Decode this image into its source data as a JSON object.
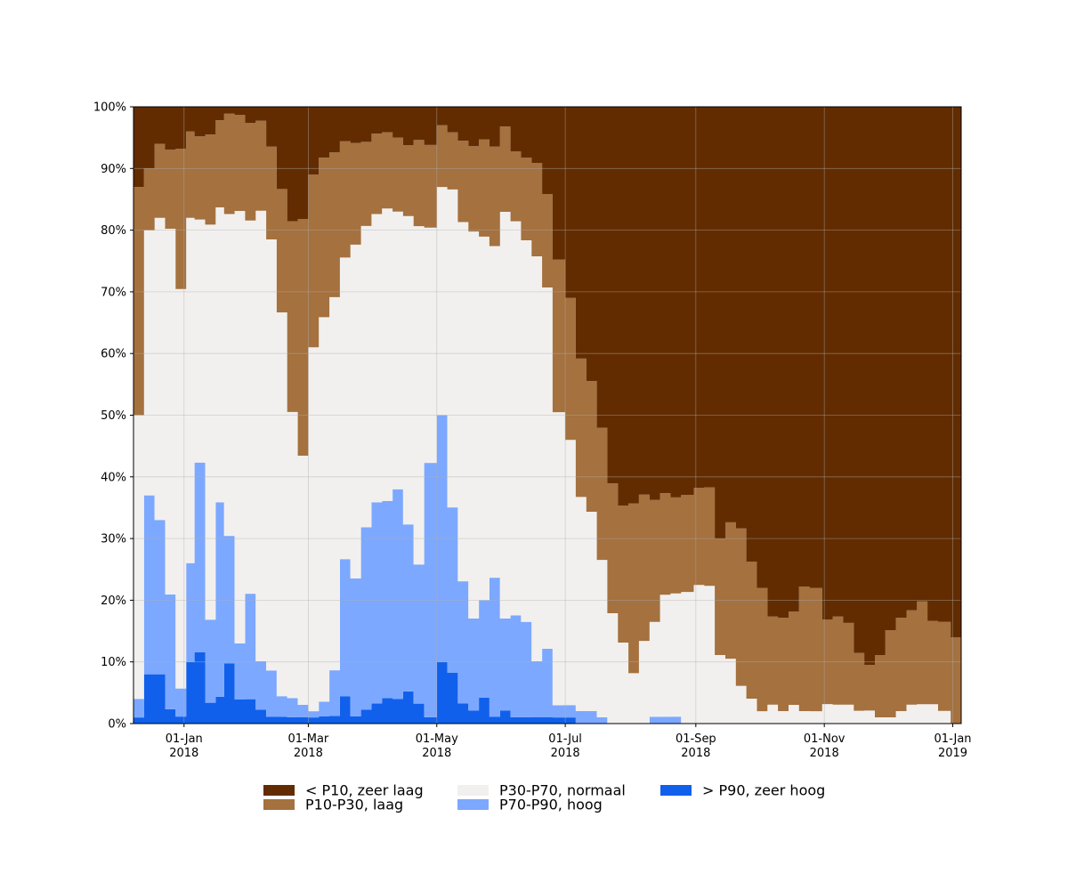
{
  "chart_data": {
    "type": "area",
    "stacked": true,
    "normalized_percent": true,
    "title": "",
    "xlabel": "",
    "ylabel": "",
    "ylim": [
      0,
      100
    ],
    "y_ticks": [
      {
        "value": 0,
        "label": "0%"
      },
      {
        "value": 10,
        "label": "10%"
      },
      {
        "value": 20,
        "label": "20%"
      },
      {
        "value": 30,
        "label": "30%"
      },
      {
        "value": 40,
        "label": "40%"
      },
      {
        "value": 50,
        "label": "50%"
      },
      {
        "value": 60,
        "label": "60%"
      },
      {
        "value": 70,
        "label": "70%"
      },
      {
        "value": 80,
        "label": "80%"
      },
      {
        "value": 90,
        "label": "90%"
      },
      {
        "value": 100,
        "label": "100%"
      }
    ],
    "xlim": [
      "2017-12-08",
      "2019-01-05"
    ],
    "x_ticks": [
      {
        "date": "2018-01-01",
        "line1": "01-Jan",
        "line2": "2018"
      },
      {
        "date": "2018-03-01",
        "line1": "01-Mar",
        "line2": "2018"
      },
      {
        "date": "2018-05-01",
        "line1": "01-May",
        "line2": "2018"
      },
      {
        "date": "2018-07-01",
        "line1": "01-Jul",
        "line2": "2018"
      },
      {
        "date": "2018-09-01",
        "line1": "01-Sep",
        "line2": "2018"
      },
      {
        "date": "2018-11-01",
        "line1": "01-Nov",
        "line2": "2018"
      },
      {
        "date": "2019-01-01",
        "line1": "01-Jan",
        "line2": "2019"
      }
    ],
    "grid": true,
    "legend_placement": "bottom-center",
    "x": [
      "2017-12-08",
      "2017-12-13",
      "2017-12-18",
      "2017-12-23",
      "2017-12-28",
      "2018-01-02",
      "2018-01-06",
      "2018-01-11",
      "2018-01-16",
      "2018-01-20",
      "2018-01-25",
      "2018-01-30",
      "2018-02-04",
      "2018-02-09",
      "2018-02-14",
      "2018-02-19",
      "2018-02-24",
      "2018-03-01",
      "2018-03-06",
      "2018-03-11",
      "2018-03-16",
      "2018-03-21",
      "2018-03-26",
      "2018-03-31",
      "2018-04-05",
      "2018-04-10",
      "2018-04-15",
      "2018-04-20",
      "2018-04-25",
      "2018-05-01",
      "2018-05-06",
      "2018-05-11",
      "2018-05-16",
      "2018-05-21",
      "2018-05-26",
      "2018-05-31",
      "2018-06-05",
      "2018-06-10",
      "2018-06-15",
      "2018-06-20",
      "2018-06-25",
      "2018-07-01",
      "2018-07-06",
      "2018-07-11",
      "2018-07-16",
      "2018-07-21",
      "2018-07-26",
      "2018-07-31",
      "2018-08-05",
      "2018-08-10",
      "2018-08-15",
      "2018-08-20",
      "2018-08-25",
      "2018-08-31",
      "2018-09-05",
      "2018-09-10",
      "2018-09-15",
      "2018-09-20",
      "2018-09-25",
      "2018-09-30",
      "2018-10-05",
      "2018-10-10",
      "2018-10-15",
      "2018-10-20",
      "2018-10-25",
      "2018-10-31",
      "2018-11-05",
      "2018-11-10",
      "2018-11-15",
      "2018-11-20",
      "2018-11-25",
      "2018-11-30",
      "2018-12-05",
      "2018-12-10",
      "2018-12-15",
      "2018-12-20",
      "2018-12-25",
      "2018-12-31",
      "2019-01-04"
    ],
    "series": [
      {
        "name": "< P10, zeer laag",
        "color": "#622c00",
        "values": [
          13,
          10,
          6,
          6,
          6,
          4,
          5,
          4,
          2,
          1,
          1,
          2,
          2,
          6,
          12,
          18,
          18,
          11,
          7,
          6,
          5,
          5,
          5,
          4,
          4,
          5,
          6,
          5,
          6,
          3,
          4,
          5,
          6,
          5,
          6,
          3,
          7,
          8,
          9,
          14,
          25,
          31,
          40,
          44,
          51,
          58,
          64,
          63,
          61,
          58,
          57,
          57,
          56,
          55,
          58,
          63,
          64,
          67,
          73,
          78,
          81,
          82,
          81,
          77,
          78,
          79,
          81,
          82,
          85,
          86,
          88,
          84,
          82,
          80,
          77,
          80,
          81,
          86,
          86
        ]
      },
      {
        "name": "P10-P30, laag",
        "color": "#a4713f",
        "values": [
          37,
          10,
          12,
          11,
          20,
          14,
          14,
          13,
          13,
          15,
          12,
          12,
          13,
          14,
          18,
          30,
          38,
          28,
          22,
          19,
          17,
          14,
          12,
          12,
          12,
          12,
          11,
          13,
          13,
          10,
          9,
          12,
          13,
          15,
          15,
          13,
          11,
          13,
          15,
          15,
          25,
          23,
          22,
          21,
          21,
          20,
          22,
          27,
          23,
          18,
          15,
          14,
          14,
          14,
          15,
          17,
          21,
          25,
          22,
          20,
          14,
          15,
          15,
          20,
          20,
          13,
          14,
          13,
          9,
          7,
          10,
          14,
          15,
          15,
          16,
          13,
          14,
          14,
          14
        ]
      },
      {
        "name": "P30-P70, normaal",
        "color": "#f2f0ee",
        "values": [
          46,
          43,
          49,
          51,
          57,
          56,
          41,
          57,
          44,
          48,
          54,
          46,
          65,
          65,
          56,
          45,
          40,
          59,
          53,
          49,
          44,
          46,
          43,
          43,
          46,
          45,
          48,
          51,
          37,
          37,
          50,
          53,
          59,
          56,
          50,
          62,
          62,
          60,
          65,
          58,
          48,
          43,
          34,
          32,
          25,
          17,
          13,
          8,
          13,
          14,
          18,
          18,
          19,
          20,
          21,
          10,
          10,
          6,
          4,
          2,
          3,
          2,
          3,
          2,
          2,
          3,
          3,
          3,
          2,
          2,
          1,
          1,
          2,
          3,
          3,
          3,
          2,
          0,
          0
        ]
      },
      {
        "name": "P70-P90, hoog",
        "color": "#7ca8ff",
        "values": [
          3,
          29,
          25,
          16,
          4,
          16,
          32,
          12,
          29,
          19,
          7,
          13,
          7,
          7,
          3,
          3,
          2,
          1,
          2,
          6,
          20,
          19,
          26,
          30,
          31,
          34,
          26,
          21,
          40,
          40,
          26,
          18,
          14,
          15,
          21,
          14,
          16,
          15,
          9,
          11,
          2,
          2,
          2,
          2,
          1,
          0,
          0,
          0,
          0,
          1,
          1,
          1,
          0,
          0,
          0,
          0,
          0,
          0,
          0,
          0,
          0,
          0,
          0,
          0,
          0,
          0,
          0,
          0,
          0,
          0,
          0,
          0,
          0,
          0,
          0,
          0,
          0,
          0,
          0
        ]
      },
      {
        "name": "> P90, zeer hoog",
        "color": "#1060ec",
        "values": [
          1,
          8,
          8,
          2,
          1,
          10,
          12,
          3,
          4,
          9,
          3,
          3,
          2,
          1,
          1,
          1,
          1,
          1,
          1,
          1,
          4,
          1,
          2,
          3,
          4,
          4,
          5,
          3,
          1,
          10,
          8,
          3,
          2,
          4,
          1,
          2,
          1,
          1,
          1,
          1,
          1,
          1,
          0,
          0,
          0,
          0,
          0,
          0,
          0,
          0,
          0,
          0,
          0,
          0,
          0,
          0,
          0,
          0,
          0,
          0,
          0,
          0,
          0,
          0,
          0,
          0,
          0,
          0,
          0,
          0,
          0,
          0,
          0,
          0,
          0,
          0,
          0,
          0,
          0
        ]
      }
    ]
  }
}
